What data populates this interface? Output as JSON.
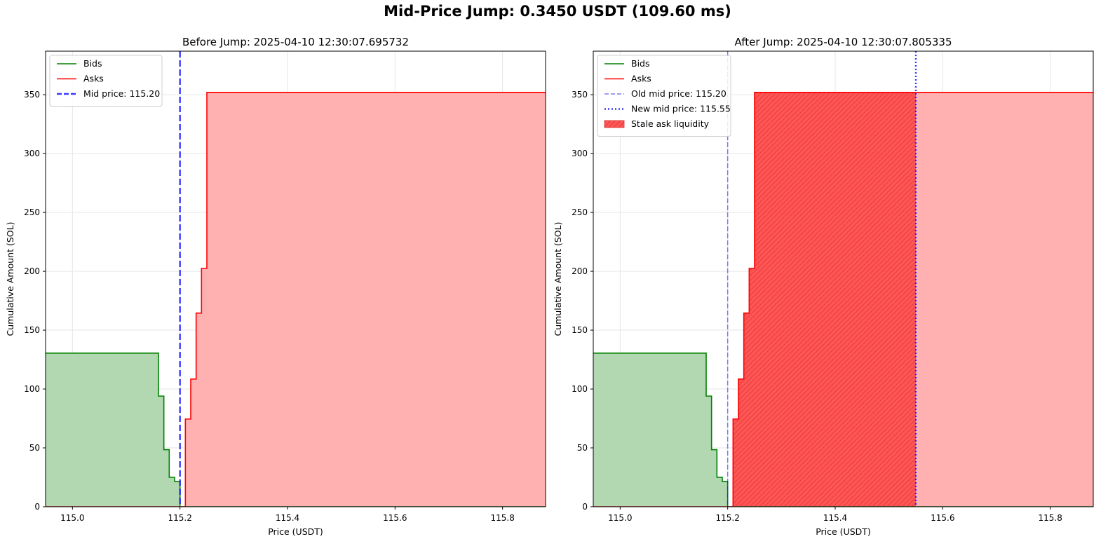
{
  "figure": {
    "suptitle": "Mid-Price Jump: 0.3450 USDT (109.60 ms)"
  },
  "colors": {
    "bids_line": "#008000",
    "bids_fill": "#b2d8b2",
    "asks_line": "#ff0000",
    "asks_fill": "#ffb0b0",
    "mid_line": "#1a1aff",
    "stale_fill": "#ff5555",
    "grid": "#e6e6e6"
  },
  "chart_data": [
    {
      "type": "area",
      "title": "Before Jump: 2025-04-10 12:30:07.695732",
      "xlabel": "Price (USDT)",
      "ylabel": "Cumulative Amount (SOL)",
      "xlim": [
        114.95,
        115.88
      ],
      "ylim": [
        0,
        387
      ],
      "xticks": [
        "115.0",
        "115.2",
        "115.4",
        "115.6",
        "115.8"
      ],
      "yticks": [
        "0",
        "50",
        "100",
        "150",
        "200",
        "250",
        "300",
        "350"
      ],
      "grid": true,
      "legend_position": "upper-left",
      "series": [
        {
          "name": "Bids",
          "side": "bid",
          "x": [
            114.95,
            115.16,
            115.17,
            115.18,
            115.19,
            115.2
          ],
          "y": [
            130.5,
            94,
            48.5,
            25,
            21.5,
            0
          ]
        },
        {
          "name": "Asks",
          "side": "ask",
          "x": [
            115.21,
            115.22,
            115.23,
            115.24,
            115.25,
            115.88
          ],
          "y": [
            74.5,
            108.5,
            164.5,
            202.5,
            352,
            352
          ]
        }
      ],
      "lines": [
        {
          "name": "Mid price: 115.20",
          "x": 115.2,
          "style": "dashed"
        }
      ]
    },
    {
      "type": "area",
      "title": "After Jump: 2025-04-10 12:30:07.805335",
      "xlabel": "Price (USDT)",
      "ylabel": "Cumulative Amount (SOL)",
      "xlim": [
        114.95,
        115.88
      ],
      "ylim": [
        0,
        387
      ],
      "xticks": [
        "115.0",
        "115.2",
        "115.4",
        "115.6",
        "115.8"
      ],
      "yticks": [
        "0",
        "50",
        "100",
        "150",
        "200",
        "250",
        "300",
        "350"
      ],
      "grid": true,
      "legend_position": "upper-left",
      "series": [
        {
          "name": "Bids",
          "side": "bid",
          "x": [
            114.95,
            115.16,
            115.17,
            115.18,
            115.19,
            115.2
          ],
          "y": [
            130.5,
            94,
            48.5,
            25,
            21.5,
            0
          ]
        },
        {
          "name": "Asks",
          "side": "ask",
          "x": [
            115.21,
            115.22,
            115.23,
            115.24,
            115.25,
            115.88
          ],
          "y": [
            74.5,
            108.5,
            164.5,
            202.5,
            352,
            352
          ]
        }
      ],
      "lines": [
        {
          "name": "Old mid price: 115.20",
          "x": 115.2,
          "style": "old-dashed"
        },
        {
          "name": "New mid price: 115.55",
          "x": 115.55,
          "style": "dotted"
        }
      ],
      "stale_region": {
        "name": "Stale ask liquidity",
        "x0": 115.2,
        "x1": 115.55
      }
    }
  ]
}
